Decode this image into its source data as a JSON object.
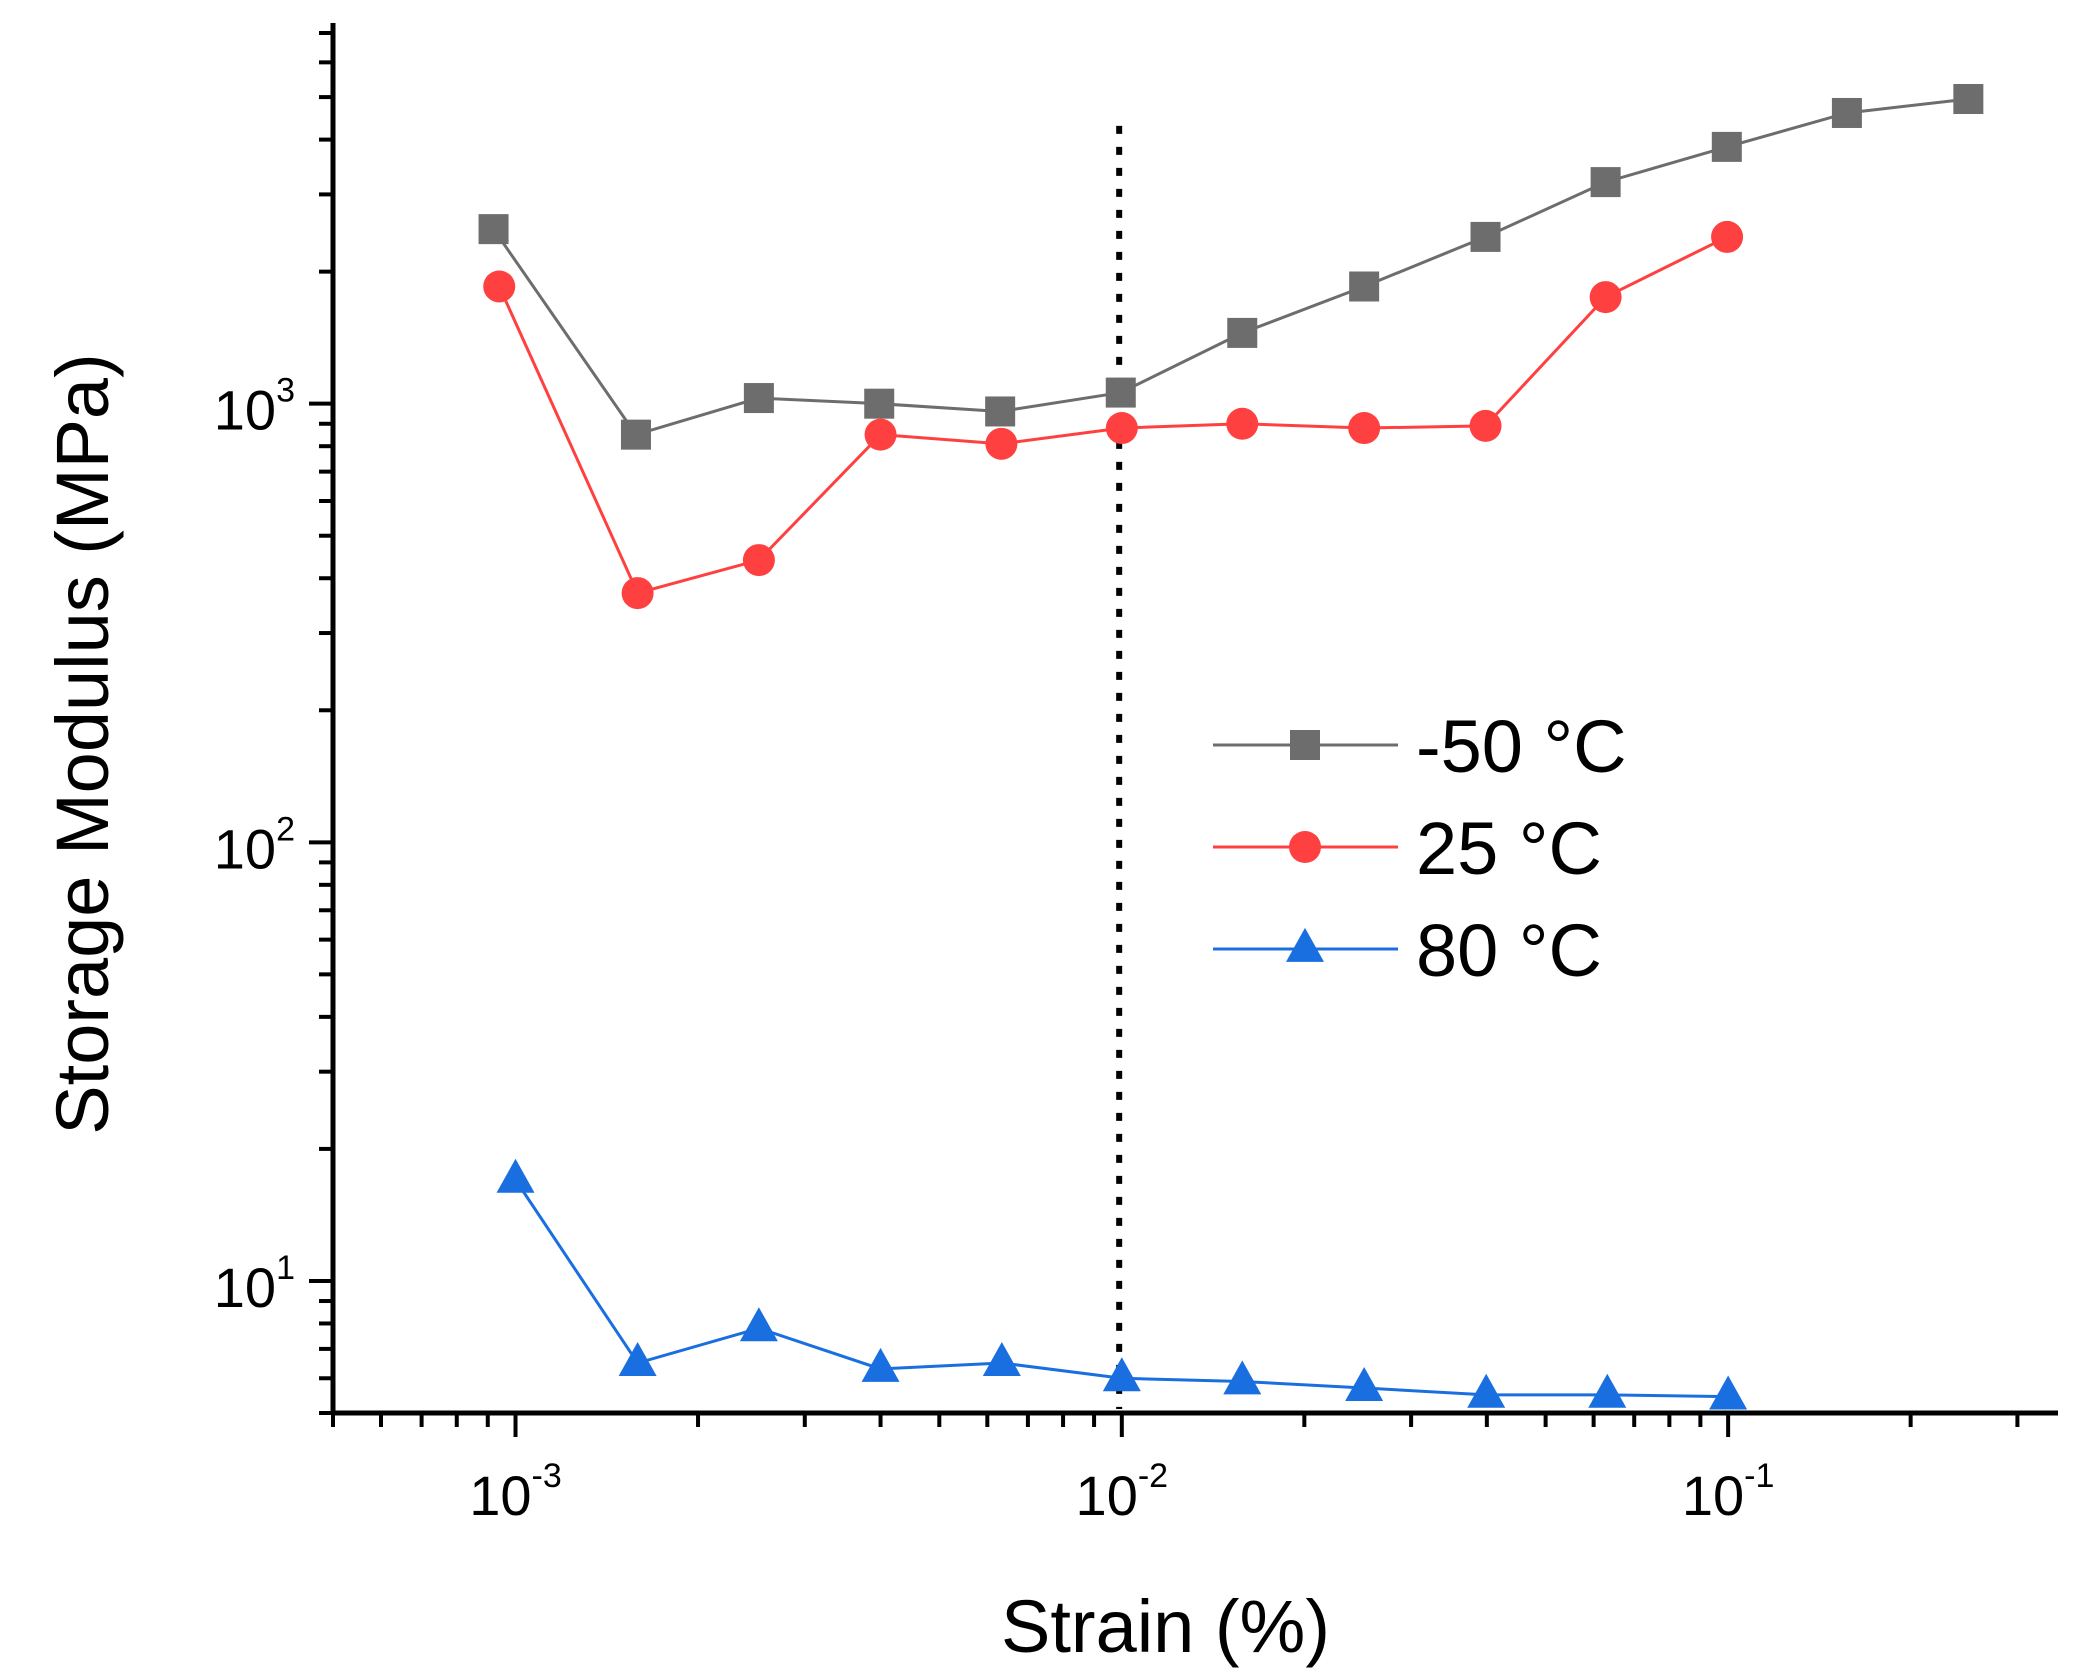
{
  "chart_data": {
    "type": "line",
    "title": "",
    "xlabel": "Strain (%)",
    "ylabel": "Storage Modulus (MPa)",
    "xscale": "log",
    "yscale": "log",
    "xlim": [
      0.0005,
      0.35
    ],
    "ylim": [
      5,
      7300
    ],
    "x_ticks": [
      {
        "value": 0.001,
        "base": "10",
        "exp": "-3"
      },
      {
        "value": 0.01,
        "base": "10",
        "exp": "-2"
      },
      {
        "value": 0.1,
        "base": "10",
        "exp": "-1"
      }
    ],
    "y_ticks": [
      {
        "value": 10,
        "base": "10",
        "exp": "1"
      },
      {
        "value": 100,
        "base": "10",
        "exp": "2"
      },
      {
        "value": 1000,
        "base": "10",
        "exp": "3"
      }
    ],
    "reference_line": {
      "x": 0.0099,
      "y_top": 4300,
      "style": "dotted"
    },
    "legend_position": "center-right",
    "series": [
      {
        "name": "-50 °C",
        "color": "#6d6d6d",
        "marker": "square",
        "x": [
          0.00092,
          0.00158,
          0.00252,
          0.00398,
          0.0063,
          0.00996,
          0.0158,
          0.0251,
          0.0398,
          0.0628,
          0.0995,
          0.157,
          0.249
        ],
        "y": [
          2500,
          850,
          1030,
          1000,
          960,
          1060,
          1450,
          1850,
          2400,
          3200,
          3850,
          4600,
          4950
        ]
      },
      {
        "name": "25 °C",
        "color": "#ff4040",
        "marker": "circle",
        "x": [
          0.00094,
          0.00159,
          0.00252,
          0.004,
          0.00633,
          0.01,
          0.0158,
          0.0251,
          0.0398,
          0.0628,
          0.0996
        ],
        "y": [
          1850,
          370,
          440,
          850,
          810,
          880,
          900,
          880,
          890,
          1750,
          2400
        ]
      },
      {
        "name": "80 °C",
        "color": "#1a6fe0",
        "marker": "triangle",
        "x": [
          0.001,
          0.00159,
          0.00252,
          0.004,
          0.00634,
          0.01,
          0.0158,
          0.0251,
          0.0399,
          0.0632,
          0.1
        ],
        "y": [
          17,
          6.5,
          7.8,
          6.3,
          6.5,
          6.0,
          5.9,
          5.7,
          5.5,
          5.5,
          5.45
        ]
      }
    ]
  }
}
